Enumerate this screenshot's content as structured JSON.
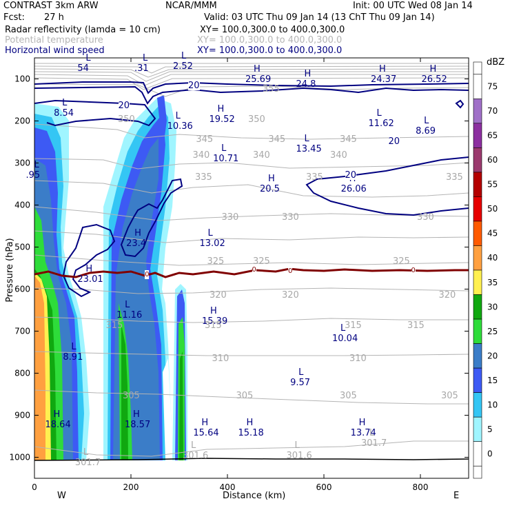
{
  "header": {
    "model": "CONTRAST   3km ARW",
    "center": "NCAR/MMM",
    "init": "Init: 00 UTC Wed 08 Jan 14",
    "fcst_label": "Fcst:",
    "fcst_value": "27 h",
    "valid": "Valid: 03 UTC Thu 09 Jan 14 (13 ChT Thu 09 Jan 14)",
    "fields": [
      {
        "name": "Radar reflectivity (lamda = 10 cm)",
        "xy": "XY= 100.0,300.0 to 400.0,300.0",
        "color": "#000000"
      },
      {
        "name": "Potential temperature",
        "xy": "XY= 100.0,300.0 to 400.0,300.0",
        "color": "#b4b4b4"
      },
      {
        "name": "Horizontal wind speed",
        "xy": "XY= 100.0,300.0 to 400.0,300.0",
        "color": "#000080"
      }
    ]
  },
  "chart_data": {
    "type": "cross-section contour",
    "xlabel": "Distance (km)",
    "ylabel": "Pressure (hPa)",
    "xlim": [
      0,
      900
    ],
    "ylim": [
      1050,
      50
    ],
    "x_ticks": [
      0,
      200,
      400,
      600,
      800
    ],
    "y_ticks": [
      100,
      200,
      300,
      400,
      500,
      600,
      700,
      800,
      900,
      1000
    ],
    "x_end_labels": {
      "left": "W",
      "right": "E"
    },
    "colorbar": {
      "unit": "dBZ",
      "levels": [
        0,
        5,
        10,
        15,
        20,
        25,
        30,
        35,
        40,
        45,
        50,
        55,
        60,
        65,
        70,
        75
      ],
      "colors": [
        "#ffffff",
        "#a0f5ff",
        "#34c6f4",
        "#3d5af4",
        "#3b7dc8",
        "#2edc3a",
        "#10a810",
        "#fff050",
        "#ffa040",
        "#ff5a00",
        "#e60000",
        "#b40000",
        "#9b3a6e",
        "#8c2fa0",
        "#a070c8",
        "#ffffff"
      ]
    },
    "isentropes_K": [
      {
        "value": 355,
        "pressure": 125
      },
      {
        "value": 350,
        "pressure": 198
      },
      {
        "value": 345,
        "pressure": 245
      },
      {
        "value": 340,
        "pressure": 282
      },
      {
        "value": 335,
        "pressure": 335
      },
      {
        "value": 330,
        "pressure": 430
      },
      {
        "value": 325,
        "pressure": 535
      },
      {
        "value": 320,
        "pressure": 615
      },
      {
        "value": 315,
        "pressure": 688
      },
      {
        "value": 310,
        "pressure": 766
      },
      {
        "value": 305,
        "pressure": 855
      },
      {
        "value": 301.6,
        "pressure": 985
      }
    ],
    "wind_contours_ms": [
      20
    ],
    "zero_contour_label": "0",
    "wind_extrema": [
      {
        "type": "L",
        "value": "54",
        "x": 112,
        "p": 63
      },
      {
        "type": "L",
        "value": ".31",
        "x": 230,
        "p": 63
      },
      {
        "type": "L",
        "value": "2.52",
        "x": 310,
        "p": 58
      },
      {
        "type": "H",
        "value": "25.69",
        "x": 460,
        "p": 90
      },
      {
        "type": "H",
        "value": "24.8",
        "x": 565,
        "p": 100
      },
      {
        "type": "H",
        "value": "24.37",
        "x": 720,
        "p": 90
      },
      {
        "type": "H",
        "value": "26.52",
        "x": 825,
        "p": 90
      },
      {
        "type": "L",
        "value": "8.54",
        "x": 63,
        "p": 170
      },
      {
        "type": "L",
        "value": "10.36",
        "x": 298,
        "p": 200
      },
      {
        "type": "H",
        "value": "19.52",
        "x": 385,
        "p": 185
      },
      {
        "type": "L",
        "value": "11.62",
        "x": 715,
        "p": 195
      },
      {
        "type": "L",
        "value": "8.69",
        "x": 813,
        "p": 213
      },
      {
        "type": "L",
        "value": "13.45",
        "x": 565,
        "p": 255
      },
      {
        "type": "L",
        "value": "10.71",
        "x": 393,
        "p": 278
      },
      {
        "type": "L",
        "value": ".95",
        "x": 5,
        "p": 318
      },
      {
        "type": "H",
        "value": "20.5",
        "x": 490,
        "p": 350
      },
      {
        "type": "H",
        "value": "26.06",
        "x": 658,
        "p": 350
      },
      {
        "type": "H",
        "value": "23.4",
        "x": 213,
        "p": 480
      },
      {
        "type": "L",
        "value": "13.02",
        "x": 365,
        "p": 480
      },
      {
        "type": "H",
        "value": "23.01",
        "x": 112,
        "p": 565
      },
      {
        "type": "L",
        "value": "11.16",
        "x": 193,
        "p": 650
      },
      {
        "type": "H",
        "value": "15.39",
        "x": 370,
        "p": 665
      },
      {
        "type": "L",
        "value": "10.04",
        "x": 640,
        "p": 705
      },
      {
        "type": "L",
        "value": "8.91",
        "x": 82,
        "p": 750
      },
      {
        "type": "L",
        "value": "9.57",
        "x": 553,
        "p": 810
      },
      {
        "type": "H",
        "value": "18.64",
        "x": 45,
        "p": 910
      },
      {
        "type": "H",
        "value": "18.57",
        "x": 210,
        "p": 910
      },
      {
        "type": "H",
        "value": "15.64",
        "x": 352,
        "p": 930
      },
      {
        "type": "H",
        "value": "15.18",
        "x": 445,
        "p": 930
      },
      {
        "type": "H",
        "value": "13.74",
        "x": 678,
        "p": 930
      }
    ],
    "theta_extrema": [
      {
        "type": "L",
        "value": "301.7",
        "x": 107,
        "p": 1000
      },
      {
        "type": "L",
        "value": "301.6",
        "x": 330,
        "p": 985
      },
      {
        "type": "L",
        "value": "301.6",
        "x": 545,
        "p": 985
      },
      {
        "type": "L",
        "value": "301.7",
        "x": 700,
        "p": 955
      }
    ]
  }
}
